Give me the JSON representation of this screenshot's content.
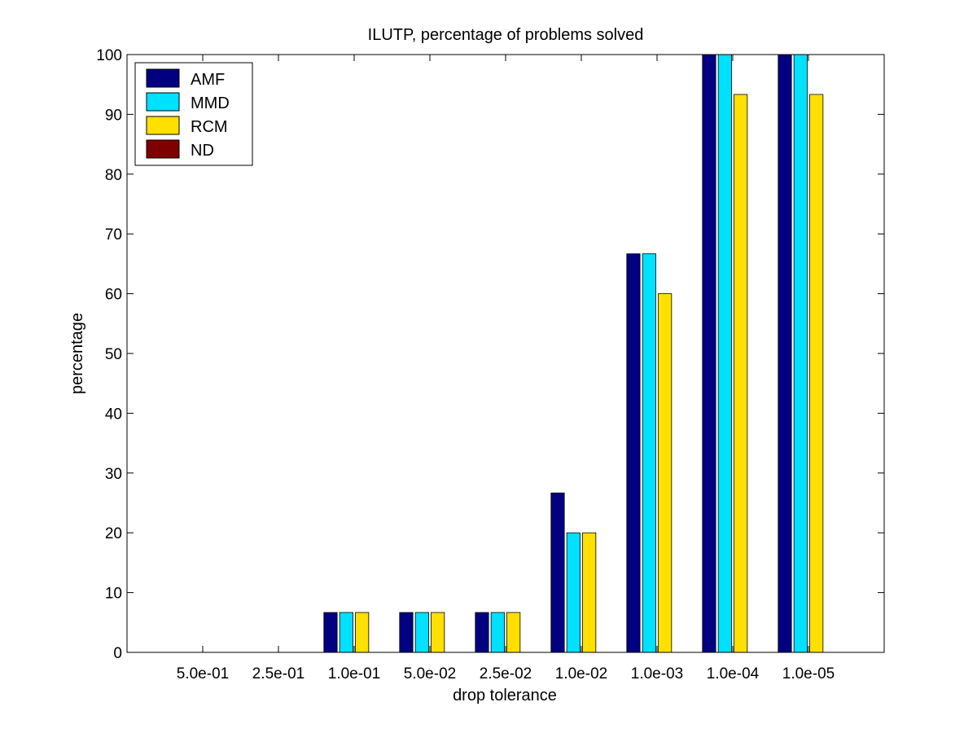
{
  "chart_data": {
    "type": "bar",
    "title": "ILUTP, percentage of problems solved",
    "xlabel": "drop tolerance",
    "ylabel": "percentage",
    "categories": [
      "5.0e-01",
      "2.5e-01",
      "1.0e-01",
      "5.0e-02",
      "2.5e-02",
      "1.0e-02",
      "1.0e-03",
      "1.0e-04",
      "1.0e-05"
    ],
    "ylim": [
      0,
      100
    ],
    "yticks": [
      0,
      10,
      20,
      30,
      40,
      50,
      60,
      70,
      80,
      90,
      100
    ],
    "grid": false,
    "legend_position": "top-left",
    "series": [
      {
        "name": "AMF",
        "color": "#000080",
        "values": [
          0,
          0,
          6.67,
          6.67,
          6.67,
          26.67,
          66.67,
          100,
          100
        ]
      },
      {
        "name": "MMD",
        "color": "#00e0ff",
        "values": [
          0,
          0,
          6.67,
          6.67,
          6.67,
          20,
          66.67,
          100,
          100
        ]
      },
      {
        "name": "RCM",
        "color": "#ffe000",
        "values": [
          0,
          0,
          6.67,
          6.67,
          6.67,
          20,
          60,
          93.33,
          93.33
        ]
      },
      {
        "name": "ND",
        "color": "#800000",
        "values": [
          0,
          0,
          0,
          0,
          0,
          0,
          0,
          0,
          0
        ]
      }
    ]
  }
}
